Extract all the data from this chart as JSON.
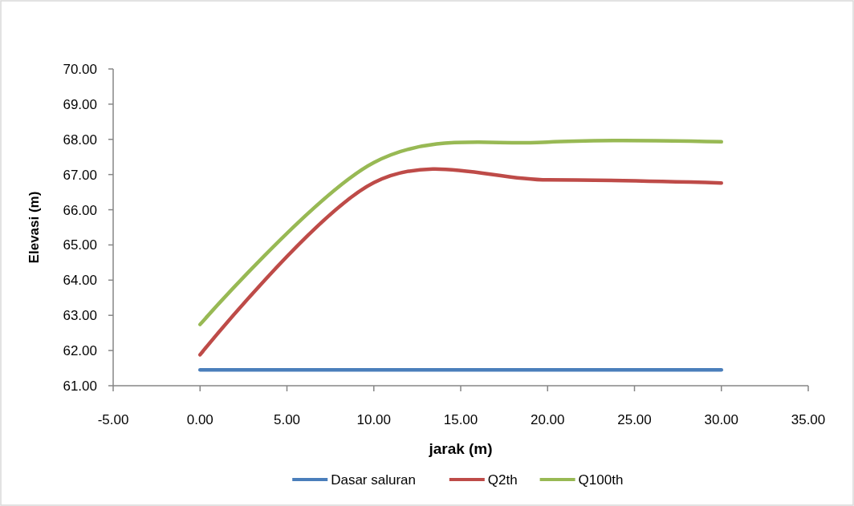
{
  "chart_data": {
    "type": "line",
    "xlabel": "jarak (m)",
    "ylabel": "Elevasi (m)",
    "x": [
      0,
      10,
      20,
      30
    ],
    "series": [
      {
        "name": "Dasar saluran",
        "color": "#4a7ebb",
        "values": [
          61.45,
          61.45,
          61.45,
          61.45
        ]
      },
      {
        "name": "Q2th",
        "color": "#be4b48",
        "values": [
          61.88,
          66.77,
          66.85,
          66.76
        ]
      },
      {
        "name": "Q100th",
        "color": "#98b954",
        "values": [
          62.74,
          67.34,
          67.92,
          67.93
        ]
      }
    ],
    "xlim": [
      -5,
      35
    ],
    "xticks": [
      {
        "value": -5,
        "label": "-5.00"
      },
      {
        "value": 0,
        "label": "0.00"
      },
      {
        "value": 5,
        "label": "5.00"
      },
      {
        "value": 10,
        "label": "10.00"
      },
      {
        "value": 15,
        "label": "15.00"
      },
      {
        "value": 20,
        "label": "20.00"
      },
      {
        "value": 25,
        "label": "25.00"
      },
      {
        "value": 30,
        "label": "30.00"
      },
      {
        "value": 35,
        "label": "35.00"
      }
    ],
    "ylim": [
      61,
      70
    ],
    "yticks": [
      {
        "value": 61,
        "label": "61.00"
      },
      {
        "value": 62,
        "label": "62.00"
      },
      {
        "value": 63,
        "label": "63.00"
      },
      {
        "value": 64,
        "label": "64.00"
      },
      {
        "value": 65,
        "label": "65.00"
      },
      {
        "value": 66,
        "label": "66.00"
      },
      {
        "value": 67,
        "label": "67.00"
      },
      {
        "value": 68,
        "label": "68.00"
      },
      {
        "value": 69,
        "label": "69.00"
      },
      {
        "value": 70,
        "label": "70.00"
      }
    ],
    "grid": false,
    "legend": "bottom",
    "marker": "none",
    "line_style": "solid"
  }
}
